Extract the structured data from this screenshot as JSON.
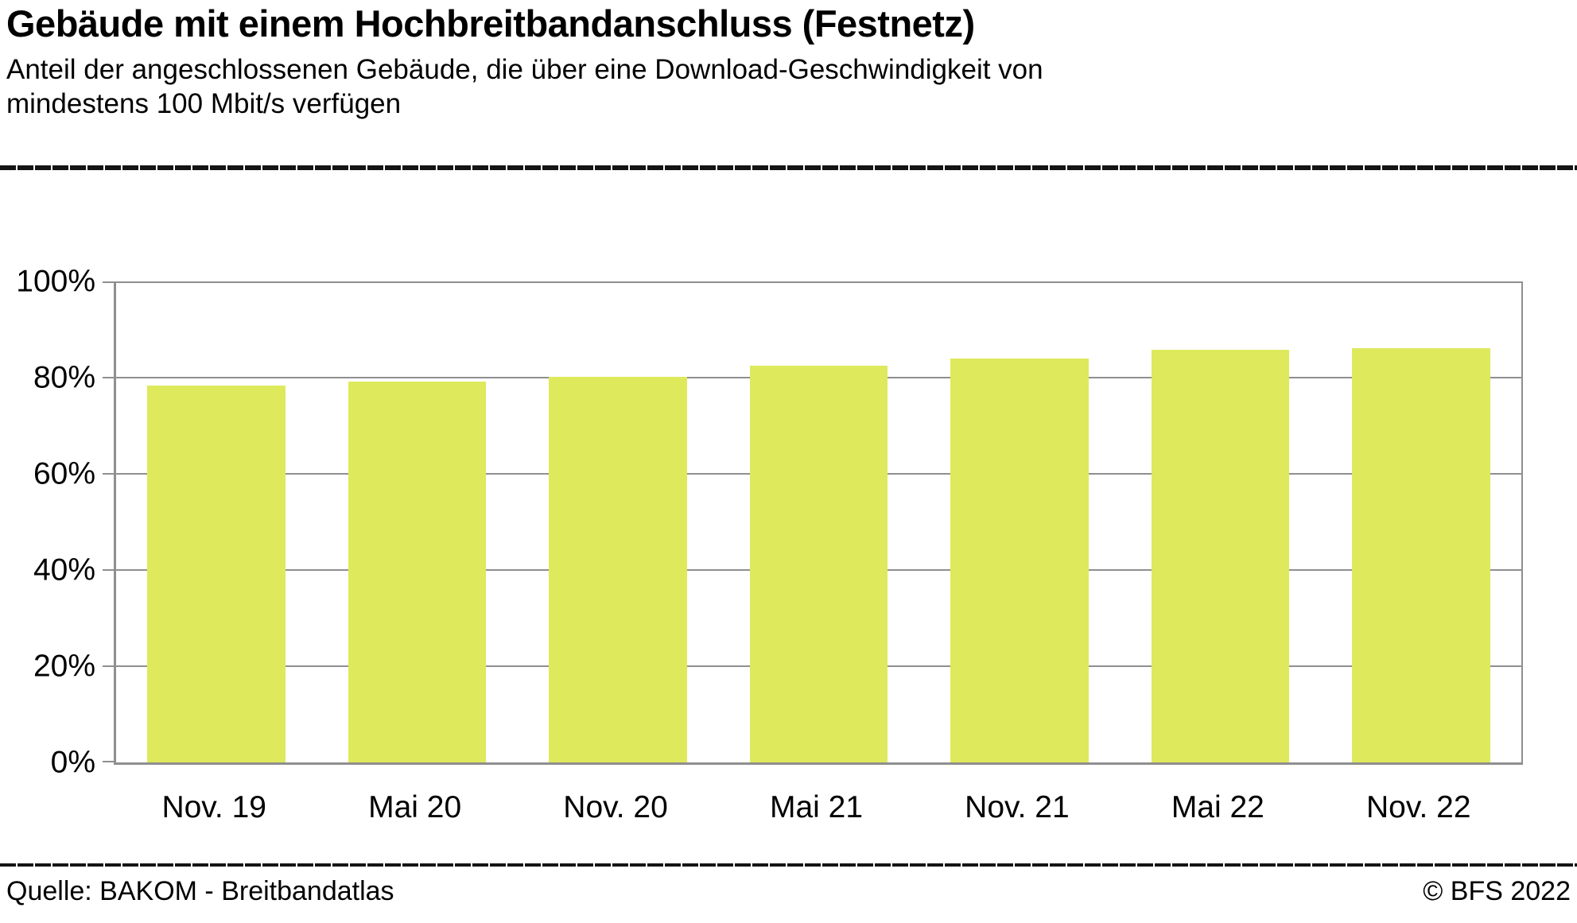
{
  "header": {
    "title": "Gebäude mit einem Hochbreitbandanschluss (Festnetz)",
    "subtitle_line1": "Anteil der angeschlossenen Gebäude, die über eine Download-Geschwindigkeit von",
    "subtitle_line2": "mindestens 100 Mbit/s verfügen"
  },
  "footer": {
    "source": "Quelle: BAKOM - Breitbandatlas",
    "copyright": "© BFS 2022"
  },
  "chart_data": {
    "type": "bar",
    "title": "Gebäude mit einem Hochbreitbandanschluss (Festnetz)",
    "subtitle": "Anteil der angeschlossenen Gebäude, die über eine Download-Geschwindigkeit von mindestens 100 Mbit/s verfügen",
    "categories": [
      "Nov. 19",
      "Mai 20",
      "Nov. 20",
      "Mai 21",
      "Nov. 21",
      "Mai 22",
      "Nov. 22"
    ],
    "values": [
      78.3,
      79.2,
      80.2,
      82.4,
      83.9,
      85.8,
      86.2
    ],
    "unit": "%",
    "xlabel": "",
    "ylabel": "",
    "ylim": [
      0,
      100
    ],
    "yticks": [
      0,
      20,
      40,
      60,
      80,
      100
    ],
    "ytick_labels": [
      "0%",
      "20%",
      "40%",
      "60%",
      "80%",
      "100%"
    ],
    "grid": true,
    "legend": "none",
    "bar_color": "#dee95c",
    "grid_color": "#8f8f8f",
    "text_color": "#000000",
    "source": "Quelle: BAKOM - Breitbandatlas",
    "copyright": "© BFS 2022"
  }
}
